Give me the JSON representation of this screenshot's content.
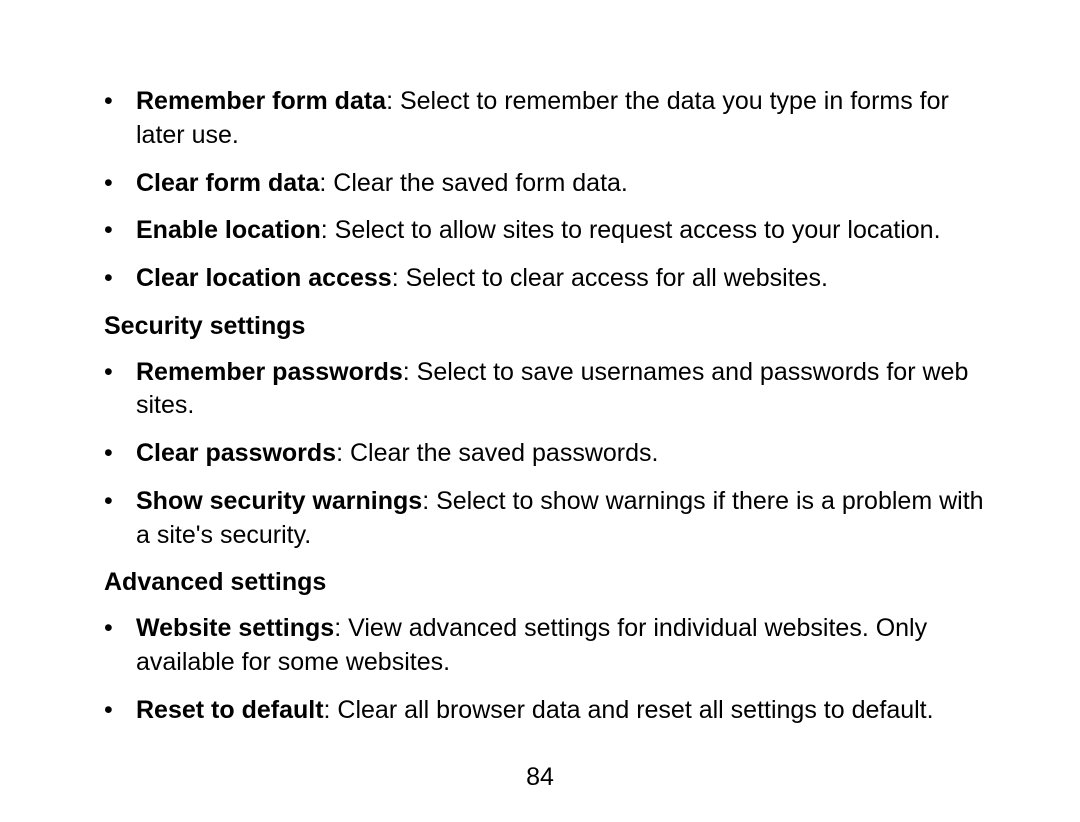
{
  "sections": [
    {
      "items": [
        {
          "term": "Remember form data",
          "desc": ": Select to remember the data you type in forms for later use."
        },
        {
          "term": "Clear form data",
          "desc": ": Clear the saved form data."
        },
        {
          "term": "Enable location",
          "desc": ": Select to allow sites to request access to your location."
        },
        {
          "term": "Clear location access",
          "desc": ": Select to clear access for all websites."
        }
      ]
    },
    {
      "heading": "Security settings",
      "items": [
        {
          "term": "Remember passwords",
          "desc": ": Select to save usernames and passwords for web sites."
        },
        {
          "term": "Clear passwords",
          "desc": ": Clear the saved passwords."
        },
        {
          "term": "Show security warnings",
          "desc": ": Select to show warnings if there is a problem with a site's security."
        }
      ]
    },
    {
      "heading": "Advanced settings",
      "items": [
        {
          "term": "Website settings",
          "desc": ": View advanced settings for individual websites. Only available for some websites."
        },
        {
          "term": "Reset to default",
          "desc": ": Clear all browser data and reset all settings to default."
        }
      ]
    }
  ],
  "pageNumber": "84",
  "styles": {
    "fontSize": 25,
    "lineHeight": 1.35,
    "textColor": "#000000",
    "backgroundColor": "#ffffff",
    "bulletChar": "•",
    "indentPx": 56,
    "fontFamily": "Arial"
  }
}
